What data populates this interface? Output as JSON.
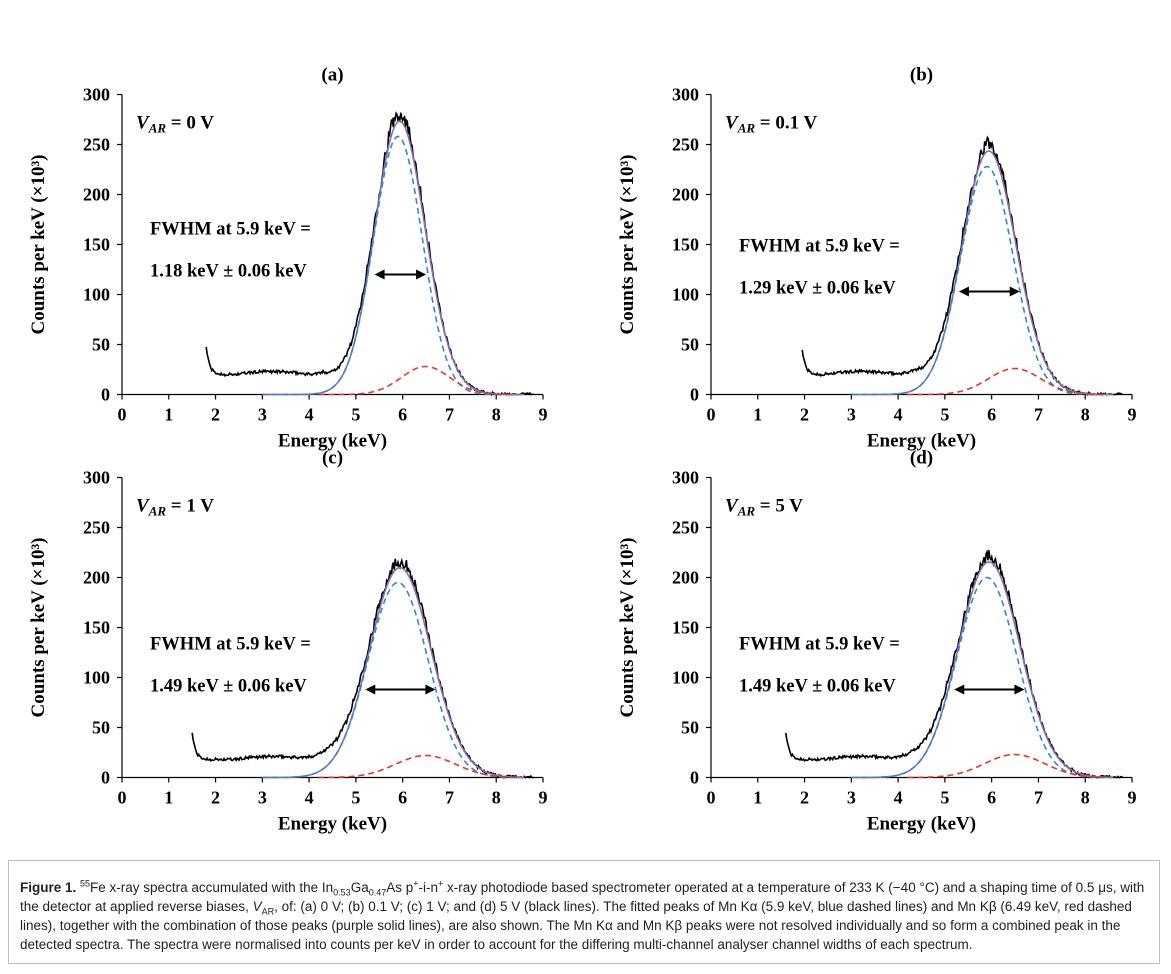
{
  "chart_data": [
    {
      "type": "line",
      "panel": "(a)",
      "title": "(a)",
      "xlabel": "Energy (keV)",
      "ylabel": "Counts per keV (×10³)",
      "xlim": [
        0,
        9
      ],
      "ylim": [
        0,
        300
      ],
      "xticks": [
        "0",
        "1",
        "2",
        "3",
        "4",
        "5",
        "6",
        "7",
        "8",
        "9"
      ],
      "yticks": [
        "0",
        "50",
        "100",
        "150",
        "200",
        "250",
        "300"
      ],
      "grid": false,
      "bias_label_var": "V",
      "bias_label_sub": "AR",
      "bias_label_value": "= 0 V",
      "fwhm_line1": "FWHM at 5.9 keV =",
      "fwhm_line2": "1.18 keV ± 0.06 keV",
      "fwhm_arrow": [
        5.4,
        6.5
      ],
      "fwhm_arrow_y": 120,
      "peaks": {
        "ka_amp": 258,
        "ka_center": 5.9,
        "kb_amp": 28,
        "kb_center": 6.49,
        "sigma": 0.52
      },
      "low_energy_tail": {
        "start": 1.8,
        "start_value": 48,
        "floor": 20
      },
      "series": [
        {
          "name": "Spectrum (black line)",
          "color": "#000000",
          "style": "solid"
        },
        {
          "name": "Mn Kα (5.9 keV)",
          "color": "#2e8bc9",
          "style": "dashed"
        },
        {
          "name": "Mn Kβ (6.49 keV)",
          "color": "#e8352a",
          "style": "dashed"
        },
        {
          "name": "Combined fit",
          "color": "#8a6fb5",
          "style": "solid"
        }
      ]
    },
    {
      "type": "line",
      "panel": "(b)",
      "title": "(b)",
      "xlabel": "Energy (keV)",
      "ylabel": "Counts per keV (×10³)",
      "xlim": [
        0,
        9
      ],
      "ylim": [
        0,
        300
      ],
      "xticks": [
        "0",
        "1",
        "2",
        "3",
        "4",
        "5",
        "6",
        "7",
        "8",
        "9"
      ],
      "yticks": [
        "0",
        "50",
        "100",
        "150",
        "200",
        "250",
        "300"
      ],
      "grid": false,
      "bias_label_var": "V",
      "bias_label_sub": "AR",
      "bias_label_value": "= 0.1 V",
      "fwhm_line1": "FWHM at 5.9 keV =",
      "fwhm_line2": "1.29 keV ± 0.06 keV",
      "fwhm_arrow": [
        5.3,
        6.6
      ],
      "fwhm_arrow_y": 103,
      "peaks": {
        "ka_amp": 228,
        "ka_center": 5.9,
        "kb_amp": 26,
        "kb_center": 6.49,
        "sigma": 0.56
      },
      "low_energy_tail": {
        "start": 1.95,
        "start_value": 45,
        "floor": 20
      },
      "series": [
        {
          "name": "Spectrum (black line)",
          "color": "#000000",
          "style": "solid"
        },
        {
          "name": "Mn Kα (5.9 keV)",
          "color": "#2e8bc9",
          "style": "dashed"
        },
        {
          "name": "Mn Kβ (6.49 keV)",
          "color": "#e8352a",
          "style": "dashed"
        },
        {
          "name": "Combined fit",
          "color": "#8a6fb5",
          "style": "solid"
        }
      ]
    },
    {
      "type": "line",
      "panel": "(c)",
      "title": "(c)",
      "xlabel": "Energy (keV)",
      "ylabel": "Counts per keV (×10³)",
      "xlim": [
        0,
        9
      ],
      "ylim": [
        0,
        300
      ],
      "xticks": [
        "0",
        "1",
        "2",
        "3",
        "4",
        "5",
        "6",
        "7",
        "8",
        "9"
      ],
      "yticks": [
        "0",
        "50",
        "100",
        "150",
        "200",
        "250",
        "300"
      ],
      "grid": false,
      "bias_label_var": "V",
      "bias_label_sub": "AR",
      "bias_label_value": "= 1 V",
      "fwhm_line1": "FWHM at 5.9 keV =",
      "fwhm_line2": "1.49 keV ± 0.06 keV",
      "fwhm_arrow": [
        5.2,
        6.7
      ],
      "fwhm_arrow_y": 88,
      "peaks": {
        "ka_amp": 195,
        "ka_center": 5.9,
        "kb_amp": 22,
        "kb_center": 6.49,
        "sigma": 0.64
      },
      "low_energy_tail": {
        "start": 1.5,
        "start_value": 45,
        "floor": 18
      },
      "series": [
        {
          "name": "Spectrum (black line)",
          "color": "#000000",
          "style": "solid"
        },
        {
          "name": "Mn Kα (5.9 keV)",
          "color": "#2e8bc9",
          "style": "dashed"
        },
        {
          "name": "Mn Kβ (6.49 keV)",
          "color": "#e8352a",
          "style": "dashed"
        },
        {
          "name": "Combined fit",
          "color": "#8a6fb5",
          "style": "solid"
        }
      ]
    },
    {
      "type": "line",
      "panel": "(d)",
      "title": "(d)",
      "xlabel": "Energy (keV)",
      "ylabel": "Counts per keV (×10³)",
      "xlim": [
        0,
        9
      ],
      "ylim": [
        0,
        300
      ],
      "xticks": [
        "0",
        "1",
        "2",
        "3",
        "4",
        "5",
        "6",
        "7",
        "8",
        "9"
      ],
      "yticks": [
        "0",
        "50",
        "100",
        "150",
        "200",
        "250",
        "300"
      ],
      "grid": false,
      "bias_label_var": "V",
      "bias_label_sub": "AR",
      "bias_label_value": "= 5 V",
      "fwhm_line1": "FWHM at 5.9 keV =",
      "fwhm_line2": "1.49 keV ± 0.06 keV",
      "fwhm_arrow": [
        5.2,
        6.7
      ],
      "fwhm_arrow_y": 88,
      "peaks": {
        "ka_amp": 200,
        "ka_center": 5.9,
        "kb_amp": 23,
        "kb_center": 6.49,
        "sigma": 0.64
      },
      "low_energy_tail": {
        "start": 1.6,
        "start_value": 45,
        "floor": 18
      },
      "series": [
        {
          "name": "Spectrum (black line)",
          "color": "#000000",
          "style": "solid"
        },
        {
          "name": "Mn Kα (5.9 keV)",
          "color": "#2e8bc9",
          "style": "dashed"
        },
        {
          "name": "Mn Kβ (6.49 keV)",
          "color": "#e8352a",
          "style": "dashed"
        },
        {
          "name": "Combined fit",
          "color": "#8a6fb5",
          "style": "solid"
        }
      ]
    }
  ],
  "caption": {
    "label": "Figure 1.",
    "iso_sup": "55",
    "p1": "Fe x-ray spectra accumulated with the In",
    "in_sub": "0.53",
    "p2": "Ga",
    "ga_sub": "0.47",
    "p3": "As p",
    "p_sup": "+",
    "p4": "-i-n",
    "n_sup": "+",
    "p5": " x-ray photodiode based spectrometer operated at a temperature of 233 K (−40 °C) and a shaping time of 0.5 μs, with the detector at applied reverse biases, ",
    "v": "V",
    "v_sub": "AR",
    "p6": ", of: (a) 0 V; (b) 0.1 V; (c) 1 V; and (d) 5 V (black lines). The fitted peaks of Mn Kα (5.9 keV, blue dashed lines) and Mn Kβ (6.49 keV, red dashed lines), together with the combination of those peaks (purple solid lines), are also shown. The Mn Kα and Mn Kβ peaks were not resolved individually and so form a combined peak in the detected spectra. The spectra were normalised into counts per keV in order to account for the differing multi-channel analyser channel widths of each spectrum."
  }
}
